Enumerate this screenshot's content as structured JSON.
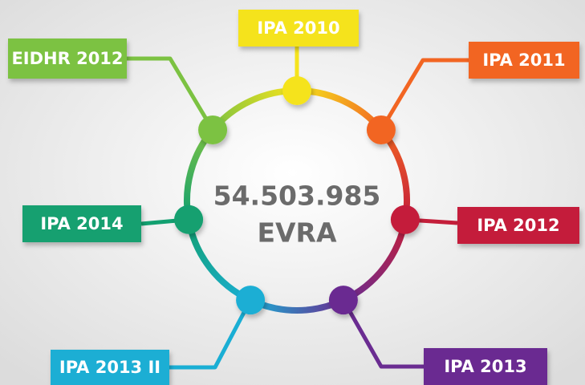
{
  "center": {
    "value": "54.503.985",
    "unit": "EVRA"
  },
  "nodes": [
    {
      "label": "IPA 2010"
    },
    {
      "label": "IPA 2011"
    },
    {
      "label": "IPA 2012"
    },
    {
      "label": "IPA 2013"
    },
    {
      "label": "IPA 2013 II"
    },
    {
      "label": "IPA 2014"
    },
    {
      "label": "EIDHR 2012"
    }
  ]
}
